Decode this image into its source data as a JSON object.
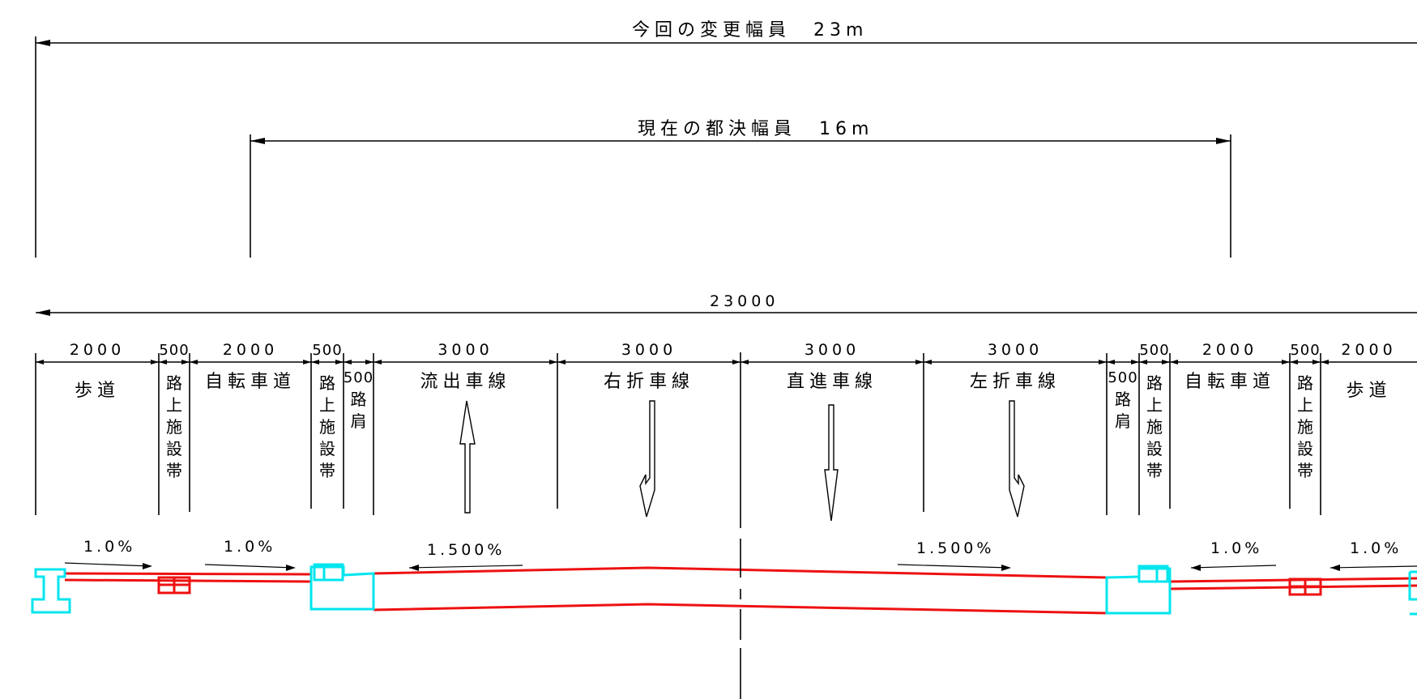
{
  "dimensions": {
    "change_width": "今回の変更幅員　23m",
    "current_width": "現在の都決幅員　16m",
    "total_mm": "23000"
  },
  "segments": [
    {
      "width": "2000",
      "label": "歩道",
      "vertical": false
    },
    {
      "width": "500",
      "label": "路上施設帯",
      "vertical": true
    },
    {
      "width": "2000",
      "label": "自転車道",
      "vertical": false
    },
    {
      "width": "500",
      "label": "路上施設帯",
      "vertical": true
    },
    {
      "width": "500",
      "label": "路肩",
      "vertical": true
    },
    {
      "width": "3000",
      "label": "流出車線",
      "vertical": false
    },
    {
      "width": "3000",
      "label": "右折車線",
      "vertical": false
    },
    {
      "width": "3000",
      "label": "直進車線",
      "vertical": false
    },
    {
      "width": "3000",
      "label": "左折車線",
      "vertical": false
    },
    {
      "width": "500",
      "label": "路肩",
      "vertical": true
    },
    {
      "width": "500",
      "label": "路上施設帯",
      "vertical": true
    },
    {
      "width": "2000",
      "label": "自転車道",
      "vertical": false
    },
    {
      "width": "500",
      "label": "路上施設帯",
      "vertical": true
    },
    {
      "width": "2000",
      "label": "歩道",
      "vertical": false
    }
  ],
  "slopes": {
    "sidewalk_left": "1.0%",
    "bike_left": "1.0%",
    "lane_left": "1.500%",
    "lane_right": "1.500%",
    "bike_right": "1.0%",
    "sidewalk_right": "1.0%"
  },
  "lane_arrows": [
    "straight-up",
    "right-turn-down",
    "straight-down",
    "left-turn-down"
  ],
  "colors": {
    "pavement": "#ee1111",
    "curb": "#00e5ee",
    "line": "#000000"
  }
}
